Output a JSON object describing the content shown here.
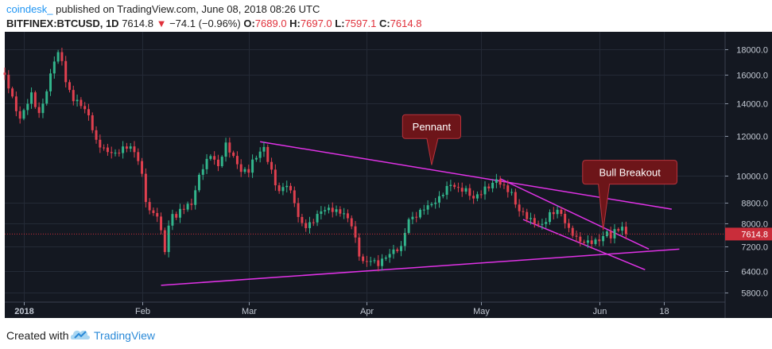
{
  "header": {
    "author": "coindesk_",
    "published": "published on TradingView.com, June 08, 2018 08:26 UTC",
    "symbol": "BITFINEX:BTCUSD, 1D",
    "last": "7614.8",
    "arrow": "▼",
    "change": "−74.1 (−0.96%)",
    "o_label": "O:",
    "o_value": "7689.0",
    "h_label": "H:",
    "h_value": "7697.0",
    "l_label": "L:",
    "l_value": "7597.1",
    "c_label": "C:",
    "c_value": "7614.8"
  },
  "footer": {
    "created_with": "Created with",
    "brand": "TradingView"
  },
  "colors": {
    "background": "#141821",
    "grid": "#242a36",
    "up": "#32b58c",
    "down": "#e0404f",
    "trendline": "#e032e6",
    "callout_fill": "#6d1519",
    "callout_border": "#b8333c",
    "price_tag": "#c92d3a"
  },
  "chart_data": {
    "type": "candlestick",
    "title": "BITFINEX:BTCUSD, 1D",
    "x_axis": {
      "ticks": [
        {
          "day": 0,
          "label": "2018"
        },
        {
          "day": 31,
          "label": "Feb"
        },
        {
          "day": 59,
          "label": "Mar"
        },
        {
          "day": 90,
          "label": "Apr"
        },
        {
          "day": 120,
          "label": "May"
        },
        {
          "day": 151,
          "label": "Jun"
        },
        {
          "day": 168,
          "label": "18"
        }
      ],
      "range_days": [
        -5,
        184
      ]
    },
    "y_axis": {
      "scale": "log",
      "ticks": [
        18000,
        16000,
        14000,
        12000,
        10000,
        8800,
        8000,
        7200,
        6400,
        5800
      ],
      "tick_labels": [
        "18000.0",
        "16000.0",
        "14000.0",
        "12000.0",
        "10000.0",
        "8800.0",
        "8000.0",
        "7200.0",
        "6400.0",
        "5800.0"
      ],
      "range": [
        5550,
        19500
      ]
    },
    "last_price": 7614.8,
    "last_price_label": "7614.8",
    "anchors": [
      [
        -5,
        15600
      ],
      [
        -3,
        14200
      ],
      [
        -1,
        13100
      ],
      [
        0,
        13800
      ],
      [
        2,
        14900
      ],
      [
        4,
        13400
      ],
      [
        6,
        14700
      ],
      [
        8,
        16800
      ],
      [
        9,
        17200
      ],
      [
        10,
        16800
      ],
      [
        11,
        15200
      ],
      [
        13,
        14300
      ],
      [
        15,
        14200
      ],
      [
        17,
        13500
      ],
      [
        19,
        11800
      ],
      [
        20,
        11500
      ],
      [
        21,
        11200
      ],
      [
        22,
        11000
      ],
      [
        24,
        10800
      ],
      [
        26,
        11200
      ],
      [
        28,
        11500
      ],
      [
        30,
        11000
      ],
      [
        31,
        10200
      ],
      [
        32,
        9100
      ],
      [
        33,
        8600
      ],
      [
        35,
        8300
      ],
      [
        36,
        7600
      ],
      [
        37,
        6950
      ],
      [
        38,
        7700
      ],
      [
        39,
        8200
      ],
      [
        40,
        8100
      ],
      [
        41,
        8400
      ],
      [
        42,
        8600
      ],
      [
        44,
        8900
      ],
      [
        46,
        10200
      ],
      [
        47,
        10600
      ],
      [
        49,
        11100
      ],
      [
        51,
        10300
      ],
      [
        53,
        11300
      ],
      [
        55,
        10700
      ],
      [
        57,
        10200
      ],
      [
        59,
        10400
      ],
      [
        60,
        10900
      ],
      [
        62,
        11400
      ],
      [
        63,
        11500
      ],
      [
        64,
        10800
      ],
      [
        66,
        9500
      ],
      [
        67,
        9100
      ],
      [
        69,
        9400
      ],
      [
        71,
        8800
      ],
      [
        72,
        8200
      ],
      [
        74,
        8000
      ],
      [
        76,
        8300
      ],
      [
        78,
        8600
      ],
      [
        80,
        8500
      ],
      [
        82,
        8300
      ],
      [
        84,
        8200
      ],
      [
        86,
        7900
      ],
      [
        88,
        7000
      ],
      [
        89,
        6800
      ],
      [
        91,
        6900
      ],
      [
        93,
        6700
      ],
      [
        95,
        6800
      ],
      [
        97,
        6900
      ],
      [
        99,
        7000
      ],
      [
        100,
        7600
      ],
      [
        101,
        8100
      ],
      [
        103,
        8400
      ],
      [
        105,
        8800
      ],
      [
        107,
        8900
      ],
      [
        109,
        9000
      ],
      [
        111,
        9300
      ],
      [
        112,
        9400
      ],
      [
        114,
        9200
      ],
      [
        116,
        9300
      ],
      [
        118,
        9100
      ],
      [
        119,
        9300
      ],
      [
        121,
        9600
      ],
      [
        123,
        9700
      ],
      [
        124,
        9800
      ],
      [
        126,
        9300
      ],
      [
        128,
        9000
      ],
      [
        129,
        8600
      ],
      [
        130,
        8400
      ],
      [
        132,
        8300
      ],
      [
        134,
        8200
      ],
      [
        136,
        8100
      ],
      [
        138,
        8400
      ],
      [
        140,
        8400
      ],
      [
        141,
        8200
      ],
      [
        143,
        7600
      ],
      [
        145,
        7400
      ],
      [
        146,
        7350
      ],
      [
        147,
        7400
      ],
      [
        149,
        7500
      ],
      [
        151,
        7550
      ],
      [
        152,
        7650
      ],
      [
        153,
        7700
      ],
      [
        154,
        7500
      ],
      [
        155,
        7620
      ],
      [
        156,
        7650
      ],
      [
        157,
        7690
      ],
      [
        158,
        7614.8
      ]
    ],
    "trendlines": [
      {
        "from": [
          62,
          11700
        ],
        "to": [
          170,
          8550
        ]
      },
      {
        "from": [
          36,
          6000
        ],
        "to": [
          172,
          7100
        ]
      },
      {
        "from": [
          125,
          9850
        ],
        "to": [
          164,
          7100
        ]
      },
      {
        "from": [
          131,
          8150
        ],
        "to": [
          163,
          6450
        ]
      }
    ],
    "annotations": [
      {
        "text": "Pennant",
        "target": [
          107,
          10500
        ],
        "anchor": [
          107,
          12550
        ]
      },
      {
        "text": "Bull Breakout",
        "target": [
          152,
          7750
        ],
        "anchor": [
          159,
          10150
        ]
      }
    ]
  }
}
